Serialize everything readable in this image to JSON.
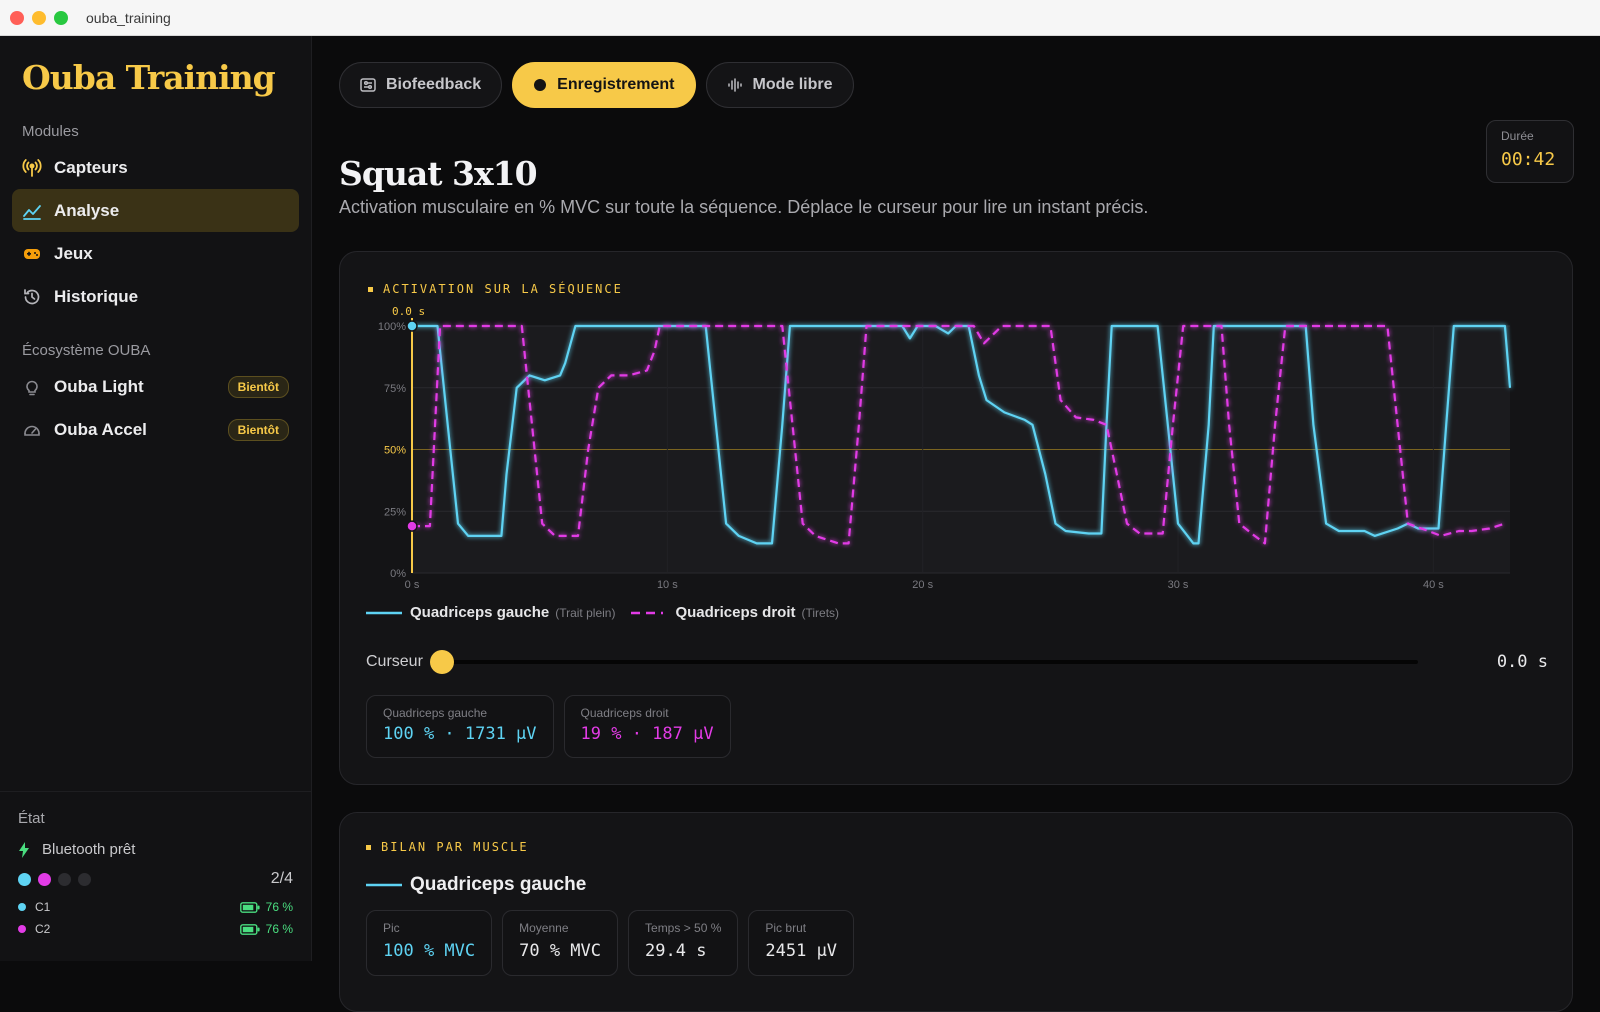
{
  "window": {
    "title": "ouba_training"
  },
  "sidebar": {
    "brand": "Ouba Training",
    "modules_label": "Modules",
    "modules": [
      {
        "label": "Capteurs",
        "icon": "antenna-icon",
        "active": false
      },
      {
        "label": "Analyse",
        "icon": "chart-line-icon",
        "active": true
      },
      {
        "label": "Jeux",
        "icon": "gamepad-icon",
        "active": false
      },
      {
        "label": "Historique",
        "icon": "history-icon",
        "active": false
      }
    ],
    "ecosystem_label": "Écosystème OUBA",
    "ecosystem": [
      {
        "label": "Ouba Light",
        "icon": "lightbulb-icon",
        "badge": "Bientôt"
      },
      {
        "label": "Ouba Accel",
        "icon": "gauge-icon",
        "badge": "Bientôt"
      }
    ],
    "status": {
      "label": "État",
      "bluetooth": "Bluetooth prêt",
      "sensors_count": "2/4",
      "channels": [
        {
          "name": "C1",
          "battery": "76 %",
          "color": "#5ed3f3"
        },
        {
          "name": "C2",
          "battery": "76 %",
          "color": "#e23be6"
        }
      ]
    }
  },
  "tabs": [
    {
      "label": "Biofeedback",
      "icon": "sliders-icon",
      "active": false
    },
    {
      "label": "Enregistrement",
      "icon": "record-dot-icon",
      "active": true
    },
    {
      "label": "Mode libre",
      "icon": "waveform-icon",
      "active": false
    }
  ],
  "header": {
    "title": "Squat 3x10",
    "subtitle": "Activation musculaire en % MVC sur toute la séquence. Déplace le curseur pour lire un instant précis.",
    "duration_label": "Durée",
    "duration_value": "00:42"
  },
  "activation_card": {
    "label": "ACTIVATION SUR LA SÉQUENCE",
    "cursor_marker": "0.0 s",
    "legend": [
      {
        "name": "Quadriceps gauche",
        "hint": "(Trait plein)",
        "color": "#5ed3f3"
      },
      {
        "name": "Quadriceps droit",
        "hint": "(Tirets)",
        "color": "#e23be6"
      }
    ],
    "cursor_label": "Curseur",
    "cursor_fraction": 0,
    "cursor_value": "0.0 s",
    "readouts": [
      {
        "label": "Quadriceps gauche",
        "value": "100 % · 1731 µV",
        "color": "#5ed3f3"
      },
      {
        "label": "Quadriceps droit",
        "value": "19 % · 187 µV",
        "color": "#e23be6"
      }
    ]
  },
  "chart_data": {
    "type": "line",
    "xlim": [
      0,
      43
    ],
    "ylim": [
      0,
      100
    ],
    "x_ticks": [
      "0 s",
      "10 s",
      "20 s",
      "30 s",
      "40 s"
    ],
    "x_tick_values": [
      0,
      10,
      20,
      30,
      40
    ],
    "y_ticks": [
      "0%",
      "25%",
      "50%",
      "75%",
      "100%"
    ],
    "y_tick_values": [
      0,
      25,
      50,
      75,
      100
    ],
    "threshold": 50,
    "series": [
      {
        "name": "Quadriceps gauche",
        "style": "solid",
        "color": "#5ed3f3",
        "points": [
          [
            0,
            100
          ],
          [
            1.0,
            100
          ],
          [
            1.4,
            60
          ],
          [
            1.8,
            20
          ],
          [
            2.2,
            15
          ],
          [
            3.5,
            15
          ],
          [
            3.7,
            40
          ],
          [
            4.1,
            75
          ],
          [
            4.6,
            80
          ],
          [
            5.2,
            78
          ],
          [
            5.8,
            80
          ],
          [
            6.0,
            85
          ],
          [
            6.4,
            100
          ],
          [
            11.5,
            100
          ],
          [
            11.9,
            60
          ],
          [
            12.3,
            20
          ],
          [
            12.8,
            15
          ],
          [
            13.5,
            12
          ],
          [
            14.1,
            12
          ],
          [
            14.5,
            60
          ],
          [
            14.8,
            100
          ],
          [
            19.2,
            100
          ],
          [
            19.5,
            95
          ],
          [
            19.8,
            100
          ],
          [
            20.5,
            100
          ],
          [
            21.0,
            97
          ],
          [
            21.3,
            100
          ],
          [
            21.8,
            100
          ],
          [
            22.2,
            80
          ],
          [
            22.5,
            70
          ],
          [
            23.2,
            65
          ],
          [
            24.0,
            62
          ],
          [
            24.3,
            60
          ],
          [
            24.8,
            40
          ],
          [
            25.2,
            20
          ],
          [
            25.6,
            17
          ],
          [
            26.5,
            16
          ],
          [
            27.0,
            16
          ],
          [
            27.2,
            60
          ],
          [
            27.4,
            100
          ],
          [
            29.2,
            100
          ],
          [
            29.6,
            60
          ],
          [
            30.0,
            20
          ],
          [
            30.6,
            12
          ],
          [
            30.8,
            12
          ],
          [
            31.2,
            60
          ],
          [
            31.4,
            100
          ],
          [
            35.0,
            100
          ],
          [
            35.3,
            60
          ],
          [
            35.8,
            20
          ],
          [
            36.3,
            17
          ],
          [
            37.3,
            17
          ],
          [
            37.7,
            15
          ],
          [
            38.6,
            18
          ],
          [
            39.0,
            20
          ],
          [
            39.4,
            18
          ],
          [
            40.2,
            18
          ],
          [
            40.5,
            60
          ],
          [
            40.8,
            100
          ],
          [
            42.8,
            100
          ],
          [
            43.0,
            75
          ]
        ]
      },
      {
        "name": "Quadriceps droit",
        "style": "dashed",
        "color": "#e23be6",
        "points": [
          [
            0,
            19
          ],
          [
            0.7,
            19
          ],
          [
            1.1,
            100
          ],
          [
            4.3,
            100
          ],
          [
            4.7,
            60
          ],
          [
            5.1,
            20
          ],
          [
            5.6,
            15
          ],
          [
            6.5,
            15
          ],
          [
            6.9,
            50
          ],
          [
            7.3,
            75
          ],
          [
            7.8,
            80
          ],
          [
            8.5,
            80
          ],
          [
            9.2,
            82
          ],
          [
            9.5,
            90
          ],
          [
            9.7,
            100
          ],
          [
            14.5,
            100
          ],
          [
            14.9,
            60
          ],
          [
            15.3,
            20
          ],
          [
            15.8,
            15
          ],
          [
            16.7,
            12
          ],
          [
            17.1,
            12
          ],
          [
            17.5,
            60
          ],
          [
            17.8,
            100
          ],
          [
            22.0,
            100
          ],
          [
            22.4,
            93
          ],
          [
            22.8,
            97
          ],
          [
            23.1,
            100
          ],
          [
            24.2,
            100
          ],
          [
            25.0,
            100
          ],
          [
            25.4,
            70
          ],
          [
            26.0,
            63
          ],
          [
            26.7,
            62
          ],
          [
            27.2,
            60
          ],
          [
            27.6,
            40
          ],
          [
            28.0,
            20
          ],
          [
            28.5,
            16
          ],
          [
            29.4,
            16
          ],
          [
            29.8,
            60
          ],
          [
            30.2,
            100
          ],
          [
            31.7,
            100
          ],
          [
            32.0,
            60
          ],
          [
            32.4,
            20
          ],
          [
            33.0,
            15
          ],
          [
            33.4,
            12
          ],
          [
            33.8,
            60
          ],
          [
            34.2,
            100
          ],
          [
            38.2,
            100
          ],
          [
            38.6,
            60
          ],
          [
            39.0,
            20
          ],
          [
            39.8,
            17
          ],
          [
            40.3,
            15
          ],
          [
            41.0,
            17
          ],
          [
            41.5,
            17
          ],
          [
            42.2,
            18
          ],
          [
            42.8,
            20
          ]
        ]
      }
    ]
  },
  "summary_card": {
    "label": "BILAN PAR MUSCLE",
    "muscle": "Quadriceps gauche",
    "muscle_color": "#5ed3f3",
    "stats": [
      {
        "label": "Pic",
        "value": "100 % MVC",
        "color": "#5ed3f3"
      },
      {
        "label": "Moyenne",
        "value": "70 % MVC",
        "color": "#e8e8ea"
      },
      {
        "label": "Temps > 50 %",
        "value": "29.4 s",
        "color": "#e8e8ea"
      },
      {
        "label": "Pic brut",
        "value": "2451 µV",
        "color": "#e8e8ea"
      }
    ]
  }
}
